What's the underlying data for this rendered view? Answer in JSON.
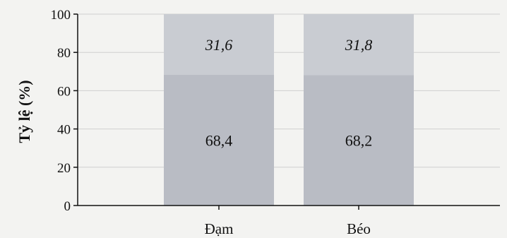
{
  "chart_data": {
    "type": "bar",
    "stacked": true,
    "title": "",
    "xlabel": "",
    "ylabel": "Tỷ lệ (%)",
    "ylim": [
      0,
      100
    ],
    "yticks": [
      0,
      20,
      40,
      60,
      80,
      100
    ],
    "grid": true,
    "categories": [
      "Đạm",
      "Béo"
    ],
    "series": [
      {
        "values": [
          68.4,
          68.2
        ],
        "labels": [
          "68,4",
          "68,2"
        ],
        "label_style": "normal",
        "color": "#b9bcc4"
      },
      {
        "values": [
          31.6,
          31.8
        ],
        "labels": [
          "31,6",
          "31,8"
        ],
        "label_style": "italic",
        "color": "#c9ccd2"
      }
    ]
  }
}
